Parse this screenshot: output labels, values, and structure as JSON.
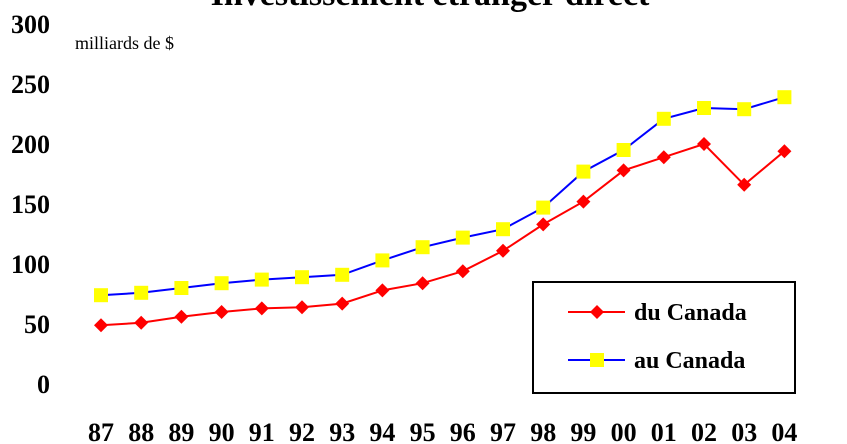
{
  "chart_data": {
    "type": "line",
    "title": "Investissement étranger direct",
    "ylabel": "milliards de $",
    "xlabel": "",
    "categories": [
      "87",
      "88",
      "89",
      "90",
      "91",
      "92",
      "93",
      "94",
      "95",
      "96",
      "97",
      "98",
      "99",
      "00",
      "01",
      "02",
      "03",
      "04"
    ],
    "ylim": [
      0,
      300
    ],
    "yticks": [
      "0",
      "50",
      "100",
      "150",
      "200",
      "250",
      "300"
    ],
    "grid": false,
    "legend_position": "bottom-right",
    "series": [
      {
        "name": "du Canada",
        "color": "#ff0000",
        "marker": "diamond",
        "values": [
          49,
          51,
          56,
          60,
          63,
          64,
          67,
          78,
          84,
          94,
          111,
          133,
          152,
          178,
          189,
          200,
          166,
          194
        ]
      },
      {
        "name": "au Canada",
        "color": "#0000ff",
        "marker_color": "#ffff00",
        "marker": "square",
        "values": [
          74,
          76,
          80,
          84,
          87,
          89,
          91,
          103,
          114,
          122,
          129,
          147,
          177,
          195,
          221,
          230,
          229,
          239
        ]
      }
    ]
  }
}
